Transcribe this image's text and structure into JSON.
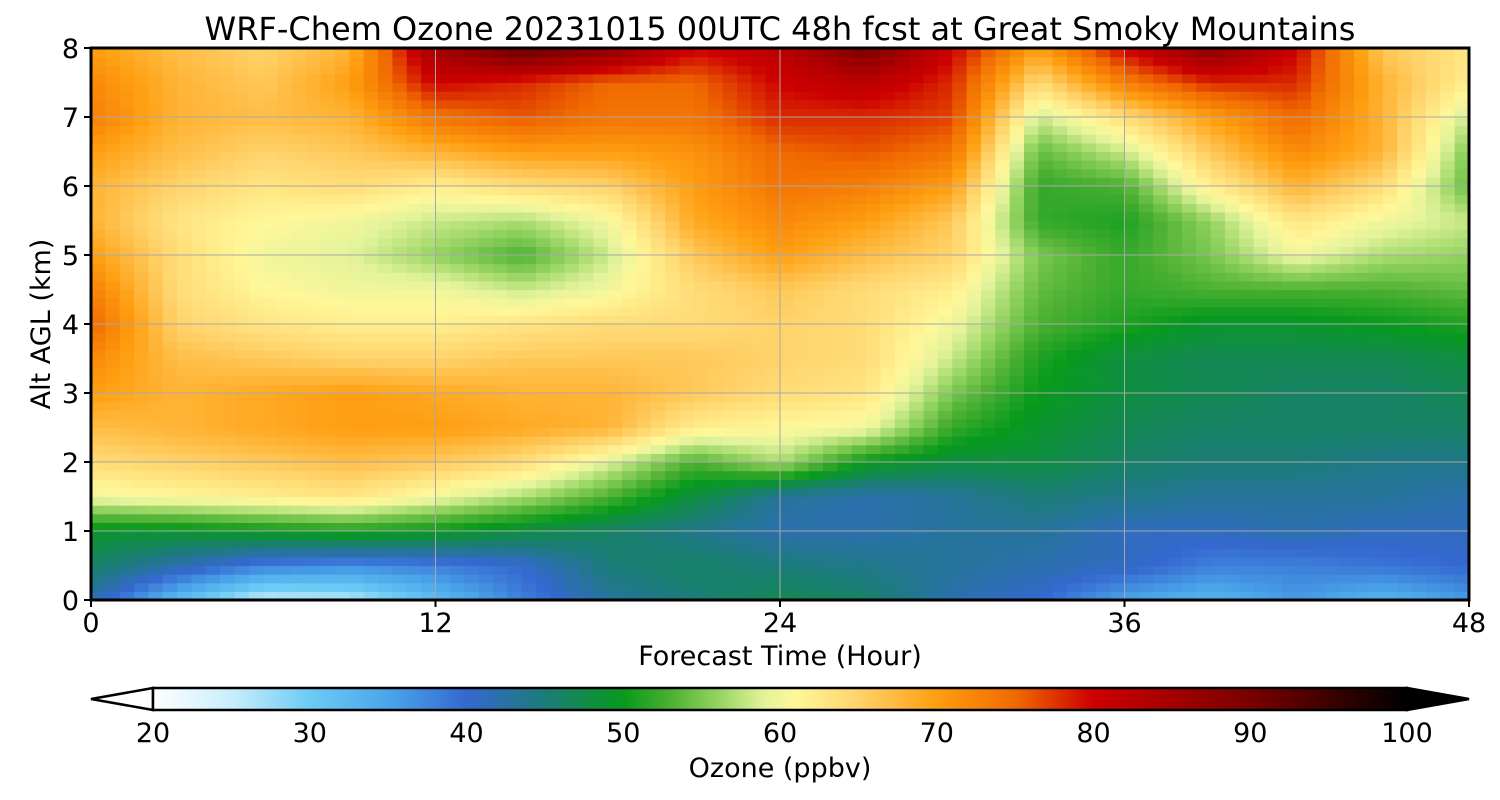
{
  "chart_data": {
    "type": "heatmap",
    "title": "WRF-Chem Ozone  20231015 00UTC 48h fcst at Great Smoky Mountains",
    "xlabel": "Forecast Time (Hour)",
    "ylabel": "Alt AGL (km)",
    "xlim": [
      0,
      48
    ],
    "ylim": [
      0,
      8
    ],
    "x_ticks": [
      0,
      12,
      24,
      36,
      48
    ],
    "y_ticks": [
      0,
      1,
      2,
      3,
      4,
      5,
      6,
      7,
      8
    ],
    "grid": true,
    "x": [
      0,
      3,
      6,
      9,
      12,
      15,
      18,
      21,
      24,
      27,
      30,
      33,
      36,
      39,
      42,
      45,
      48
    ],
    "y": [
      0,
      0.5,
      1,
      1.5,
      2,
      2.5,
      3,
      3.5,
      4,
      4.5,
      5,
      5.5,
      6,
      6.5,
      7,
      7.5,
      8
    ],
    "z": [
      [
        42,
        32,
        25,
        26,
        32,
        38,
        43,
        45,
        47,
        46,
        42,
        40,
        35,
        33,
        36,
        33,
        36
      ],
      [
        46,
        42,
        38,
        37,
        38,
        40,
        45,
        46,
        45,
        44,
        43,
        42,
        41,
        38,
        38,
        39,
        40
      ],
      [
        49,
        49,
        50,
        51,
        50,
        48,
        46,
        44,
        42,
        42,
        43,
        43,
        41,
        41,
        42,
        41,
        41
      ],
      [
        60,
        61,
        62,
        63,
        60,
        57,
        53,
        48,
        43,
        42,
        43,
        45,
        44,
        43,
        43,
        43,
        42
      ],
      [
        64,
        65,
        66,
        67,
        66,
        64,
        59,
        53,
        57,
        50,
        48,
        48,
        46,
        45,
        45,
        44,
        44
      ],
      [
        67,
        68,
        69,
        70,
        70,
        69,
        68,
        62,
        61,
        60,
        52,
        49,
        47,
        46,
        46,
        46,
        46
      ],
      [
        70,
        68,
        69,
        70,
        69,
        68,
        68,
        66,
        64,
        63,
        55,
        50,
        48,
        47,
        46,
        46,
        47
      ],
      [
        72,
        67,
        66,
        65,
        65,
        66,
        66,
        66,
        65,
        64,
        58,
        51,
        48,
        47,
        47,
        47,
        48
      ],
      [
        75,
        65,
        63,
        62,
        62,
        63,
        64,
        64,
        65,
        64,
        60,
        53,
        51,
        49,
        49,
        50,
        51
      ],
      [
        73,
        64,
        61,
        60,
        60,
        58,
        60,
        64,
        66,
        64,
        62,
        54,
        52,
        53,
        53,
        53,
        54
      ],
      [
        70,
        64,
        60,
        59,
        56,
        53,
        58,
        66,
        70,
        67,
        65,
        55,
        52,
        55,
        60,
        57,
        56
      ],
      [
        68,
        63,
        61,
        60,
        58,
        57,
        60,
        69,
        72,
        70,
        66,
        52,
        51,
        56,
        63,
        60,
        58
      ],
      [
        68,
        65,
        63,
        64,
        62,
        64,
        65,
        70,
        74,
        73,
        70,
        52,
        53,
        62,
        68,
        64,
        54
      ],
      [
        70,
        67,
        65,
        66,
        68,
        70,
        70,
        71,
        75,
        76,
        74,
        54,
        58,
        66,
        72,
        68,
        55
      ],
      [
        73,
        68,
        67,
        68,
        74,
        76,
        74,
        74,
        78,
        78,
        77,
        58,
        64,
        70,
        75,
        68,
        58
      ],
      [
        72,
        68,
        66,
        70,
        80,
        78,
        75,
        75,
        80,
        82,
        78,
        64,
        73,
        78,
        78,
        68,
        62
      ],
      [
        70,
        67,
        65,
        68,
        85,
        92,
        88,
        80,
        82,
        90,
        80,
        70,
        80,
        88,
        80,
        66,
        63
      ]
    ],
    "colorbar": {
      "label": "Ozone  (ppbv)",
      "min": 20,
      "max": 100,
      "ticks": [
        20,
        30,
        40,
        50,
        60,
        70,
        80,
        90,
        100
      ],
      "extend": "both",
      "colormap": [
        [
          20,
          "#ffffff"
        ],
        [
          25,
          "#c8eefb"
        ],
        [
          30,
          "#6ccbf5"
        ],
        [
          35,
          "#4aa6ea"
        ],
        [
          40,
          "#3568d0"
        ],
        [
          45,
          "#1b7c78"
        ],
        [
          50,
          "#079a1c"
        ],
        [
          53,
          "#4bb032"
        ],
        [
          56,
          "#93d360"
        ],
        [
          59,
          "#e3f39b"
        ],
        [
          61,
          "#fff799"
        ],
        [
          65,
          "#ffd36b"
        ],
        [
          70,
          "#ff9e10"
        ],
        [
          75,
          "#f06a00"
        ],
        [
          80,
          "#cc0000"
        ],
        [
          90,
          "#7a0000"
        ],
        [
          100,
          "#000000"
        ]
      ]
    }
  }
}
